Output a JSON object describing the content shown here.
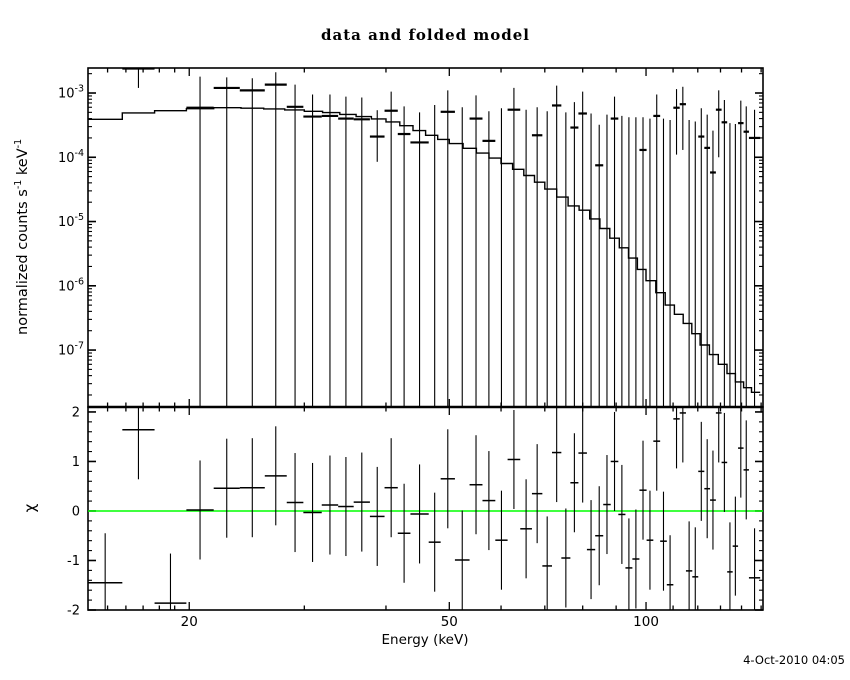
{
  "title": "data and folded model",
  "timestamp": "4-Oct-2010 04:05",
  "labels": {
    "xlabel": "Energy (keV)",
    "y1_parts": {
      "a": "normalized counts s",
      "s1": "-1",
      "b": " keV",
      "s2": "-1"
    },
    "y2": "χ"
  },
  "colors": {
    "foreground": "#000000",
    "background": "#ffffff",
    "zero_line": "#00ff00"
  },
  "chart_data": {
    "type": "scatter",
    "title": "data and folded model",
    "description": "Two-panel X-ray spectral plot: top = counts spectrum with binned data crosses and stepped folded-model line (log-log); bottom = chi residuals with unit error bars and green zero line.",
    "x_axis": {
      "label": "Energy (keV)",
      "scale": "log",
      "range": [
        14,
        151
      ],
      "labeled_ticks": [
        20,
        50,
        100
      ],
      "minor_ticks": [
        15,
        16,
        17,
        18,
        19,
        30,
        40,
        60,
        70,
        80,
        90,
        110,
        120,
        130,
        140,
        150
      ]
    },
    "spectrum_panel": {
      "ylabel": "normalized counts s-1 keV-1",
      "scale": "log",
      "range": [
        1.3e-08,
        0.00245
      ],
      "labeled_tick_exponents": [
        -3,
        -4,
        -5,
        -6,
        -7
      ]
    },
    "residual_panel": {
      "ylabel": "chi",
      "scale": "linear",
      "range": [
        -2.0,
        2.1
      ],
      "labeled_ticks": [
        -2,
        -1,
        0,
        1,
        2
      ],
      "minor_tick_step": 0.2,
      "error_half_length": 1,
      "zero_line": 0
    },
    "bins_columns": [
      "e_lo_keV",
      "e_hi_keV",
      "counts",
      "counts_err_hi",
      "counts_err_lo_0_means_to_zero",
      "chi"
    ],
    "bins": [
      [
        14.0,
        15.8,
        null,
        null,
        null,
        -1.45
      ],
      [
        15.8,
        17.7,
        0.0024,
        0.0032,
        0.0012,
        1.64
      ],
      [
        17.7,
        19.8,
        null,
        null,
        null,
        -1.86
      ],
      [
        19.8,
        21.8,
        0.00059,
        0.0018,
        0,
        0.02
      ],
      [
        21.8,
        23.9,
        0.0012,
        0.00175,
        0,
        0.46
      ],
      [
        23.9,
        26.1,
        0.0011,
        0.0017,
        0,
        0.47
      ],
      [
        26.1,
        28.2,
        0.00135,
        0.0021,
        0,
        0.71
      ],
      [
        28.2,
        29.9,
        0.00061,
        0.00135,
        0,
        0.17
      ],
      [
        29.9,
        31.9,
        0.00043,
        0.00095,
        0,
        -0.03
      ],
      [
        31.9,
        33.8,
        0.00044,
        0.00095,
        0,
        0.12
      ],
      [
        33.8,
        35.7,
        0.0004,
        0.00088,
        0,
        0.09
      ],
      [
        35.7,
        37.8,
        0.00039,
        0.00085,
        0,
        0.18
      ],
      [
        37.8,
        39.8,
        0.00021,
        0.00054,
        8.5e-05,
        -0.11
      ],
      [
        39.8,
        41.7,
        0.00053,
        0.00105,
        0,
        0.47
      ],
      [
        41.7,
        43.6,
        0.00023,
        0.00062,
        0,
        -0.45
      ],
      [
        43.6,
        46.5,
        0.00017,
        0.0005,
        0,
        -0.06
      ],
      [
        46.5,
        48.5,
        null,
        0.00065,
        0,
        -0.63
      ],
      [
        48.5,
        51.0,
        0.00051,
        0.0011,
        0,
        0.65
      ],
      [
        51.0,
        53.7,
        null,
        0.0006,
        0,
        -0.99
      ],
      [
        53.7,
        56.2,
        0.0004,
        0.00092,
        0,
        0.53
      ],
      [
        56.2,
        58.8,
        0.00018,
        0.00052,
        0,
        0.21
      ],
      [
        58.8,
        61.4,
        null,
        0.00058,
        0,
        -0.59
      ],
      [
        61.4,
        64.2,
        0.00055,
        0.0012,
        0,
        1.04
      ],
      [
        64.2,
        66.9,
        null,
        0.00055,
        0,
        -0.36
      ],
      [
        66.9,
        69.4,
        0.00022,
        0.0006,
        0,
        0.35
      ],
      [
        69.4,
        71.8,
        null,
        0.00052,
        0,
        -1.11
      ],
      [
        71.8,
        74.2,
        0.00064,
        0.0013,
        0,
        1.18
      ],
      [
        74.2,
        76.6,
        null,
        0.0005,
        0,
        -0.95
      ],
      [
        76.6,
        78.8,
        0.00029,
        0.00072,
        0,
        0.57
      ],
      [
        78.8,
        81.2,
        0.00048,
        0.00105,
        0,
        1.17
      ],
      [
        81.2,
        83.6,
        null,
        0.00048,
        0,
        -0.78
      ],
      [
        83.6,
        86.0,
        7.5e-05,
        0.00032,
        0,
        -0.5
      ],
      [
        86.0,
        88.3,
        null,
        0.00046,
        0,
        0.13
      ],
      [
        88.3,
        90.7,
        0.0004,
        0.00088,
        0,
        1.0
      ],
      [
        90.7,
        93.0,
        null,
        0.00044,
        0,
        -0.07
      ],
      [
        93.0,
        95.3,
        null,
        0.00042,
        0,
        -1.15
      ],
      [
        95.3,
        97.7,
        null,
        0.00042,
        0,
        -0.97
      ],
      [
        97.7,
        100.2,
        0.00013,
        0.00042,
        0,
        0.42
      ],
      [
        100.2,
        102.6,
        null,
        0.0004,
        0,
        -0.59
      ],
      [
        102.6,
        105.1,
        0.00044,
        0.00095,
        0,
        1.41
      ],
      [
        105.1,
        107.6,
        null,
        0.0004,
        0,
        -0.61
      ],
      [
        107.6,
        110.1,
        null,
        0.00038,
        0,
        -1.49
      ],
      [
        110.1,
        112.6,
        0.00059,
        0.00115,
        0.00011,
        1.86
      ],
      [
        112.6,
        115.1,
        0.00067,
        0.00125,
        0.00013,
        1.98
      ],
      [
        115.1,
        117.7,
        null,
        0.00038,
        0,
        -1.21
      ],
      [
        117.7,
        120.2,
        null,
        0.00036,
        0,
        -1.33
      ],
      [
        120.2,
        122.8,
        0.00021,
        0.00058,
        0,
        0.8
      ],
      [
        122.8,
        125.3,
        0.00014,
        0.00046,
        0,
        0.45
      ],
      [
        125.3,
        127.9,
        5.8e-05,
        0.00026,
        0,
        0.22
      ],
      [
        127.9,
        130.5,
        0.00055,
        0.0011,
        0.0001,
        1.98
      ],
      [
        130.5,
        133.1,
        0.00035,
        0.00078,
        0,
        0.98
      ],
      [
        133.1,
        135.7,
        null,
        0.00034,
        0,
        -1.23
      ],
      [
        135.7,
        138.3,
        null,
        0.00033,
        0,
        -0.71
      ],
      [
        138.3,
        141.0,
        0.00034,
        0.00076,
        0,
        1.27
      ],
      [
        141.0,
        143.7,
        0.00025,
        0.00062,
        0,
        0.83
      ],
      [
        143.7,
        149.5,
        0.0002,
        0.00055,
        0,
        -1.35
      ]
    ],
    "model": {
      "step_edges_keV": [
        14,
        15.8,
        17.7,
        19.8,
        21.8,
        24,
        26,
        28,
        30,
        32,
        34,
        36,
        38,
        40,
        42,
        44,
        46,
        48,
        50,
        52.5,
        55,
        57.5,
        60,
        62.5,
        65,
        67.5,
        70,
        73,
        76,
        79,
        82,
        85,
        88,
        91,
        94,
        97,
        100,
        103.5,
        107,
        110.5,
        114,
        117.5,
        121,
        125,
        129,
        133,
        137,
        141,
        145,
        149.5
      ],
      "values": [
        0.00039,
        0.00049,
        0.00053,
        0.00057,
        0.00059,
        0.00058,
        0.000565,
        0.000545,
        0.00052,
        0.000495,
        0.000465,
        0.00043,
        0.000395,
        0.000355,
        0.00031,
        0.00026,
        0.00022,
        0.00019,
        0.000163,
        0.000138,
        0.000116,
        9.7e-05,
        8e-05,
        6.5e-05,
        5.2e-05,
        4.1e-05,
        3.2e-05,
        2.4e-05,
        1.75e-05,
        1.5e-05,
        1.1e-05,
        7.8e-06,
        5.5e-06,
        3.9e-06,
        2.7e-06,
        1.8e-06,
        1.2e-06,
        7.8e-07,
        5e-07,
        3.6e-07,
        2.6e-07,
        1.8e-07,
        1.2e-07,
        8.5e-08,
        6e-08,
        4.3e-08,
        3.2e-08,
        2.6e-08,
        2.2e-08
      ]
    }
  }
}
